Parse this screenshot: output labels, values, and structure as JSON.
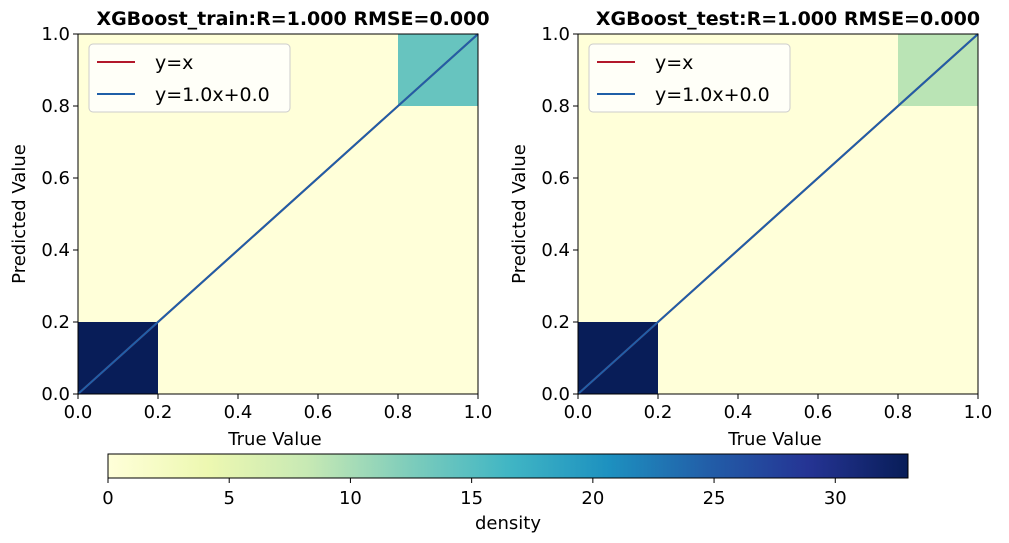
{
  "colormap": [
    "#ffffd9",
    "#edf8b1",
    "#c7e9b4",
    "#7fcdbb",
    "#41b6c4",
    "#1d91c0",
    "#225ea8",
    "#253494",
    "#081d58"
  ],
  "chart_data": [
    {
      "type": "heatmap",
      "title": "XGBoost_train:R=1.000 RMSE=0.000",
      "xlabel": "True Value",
      "ylabel": "Predicted Value",
      "xlim": [
        0,
        1
      ],
      "ylim": [
        0,
        1
      ],
      "x_ticks": [
        "0.0",
        "0.2",
        "0.4",
        "0.6",
        "0.8",
        "1.0"
      ],
      "y_ticks": [
        "0.0",
        "0.2",
        "0.4",
        "0.6",
        "0.8",
        "1.0"
      ],
      "bins": 5,
      "cells": [
        {
          "x0": 0.0,
          "x1": 0.2,
          "y0": 0.0,
          "y1": 0.2,
          "density": 33
        },
        {
          "x0": 0.8,
          "x1": 1.0,
          "y0": 0.8,
          "y1": 1.0,
          "density": 14
        }
      ],
      "lines": [
        {
          "name": "y=x",
          "slope": 1.0,
          "intercept": 0.0,
          "color": "#b2182b"
        },
        {
          "name": "y=1.0x+0.0",
          "slope": 1.0,
          "intercept": 0.0,
          "color": "#1f5fa8"
        }
      ],
      "legend_position": "top-left"
    },
    {
      "type": "heatmap",
      "title": "XGBoost_test:R=1.000 RMSE=0.000",
      "xlabel": "True Value",
      "ylabel": "Predicted Value",
      "xlim": [
        0,
        1
      ],
      "ylim": [
        0,
        1
      ],
      "x_ticks": [
        "0.0",
        "0.2",
        "0.4",
        "0.6",
        "0.8",
        "1.0"
      ],
      "y_ticks": [
        "0.0",
        "0.2",
        "0.4",
        "0.6",
        "0.8",
        "1.0"
      ],
      "bins": 5,
      "cells": [
        {
          "x0": 0.0,
          "x1": 0.2,
          "y0": 0.0,
          "y1": 0.2,
          "density": 33
        },
        {
          "x0": 0.8,
          "x1": 1.0,
          "y0": 0.8,
          "y1": 1.0,
          "density": 9
        }
      ],
      "lines": [
        {
          "name": "y=x",
          "slope": 1.0,
          "intercept": 0.0,
          "color": "#b2182b"
        },
        {
          "name": "y=1.0x+0.0",
          "slope": 1.0,
          "intercept": 0.0,
          "color": "#1f5fa8"
        }
      ],
      "legend_position": "top-left"
    }
  ],
  "colorbar": {
    "label": "density",
    "range": [
      0,
      33
    ],
    "ticks": [
      0,
      5,
      10,
      15,
      20,
      25,
      30
    ],
    "orientation": "horizontal"
  }
}
